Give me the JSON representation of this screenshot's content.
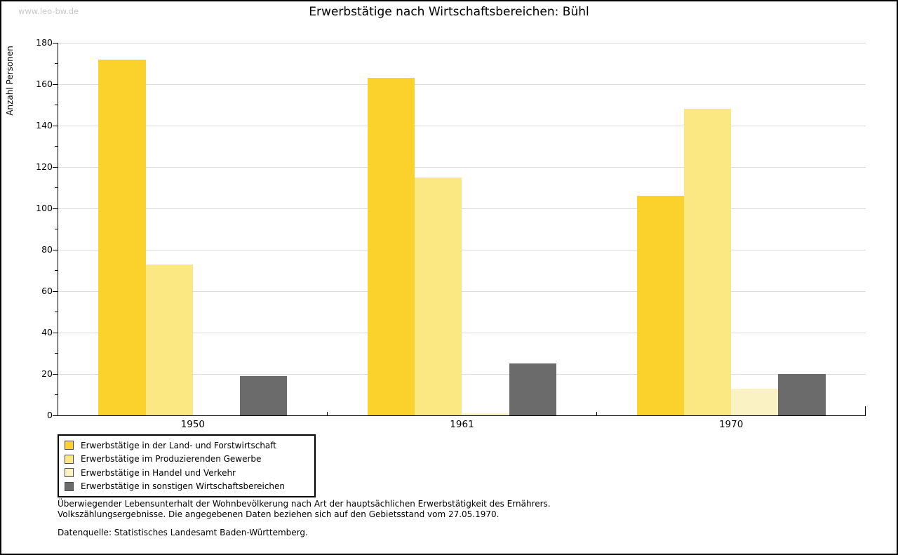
{
  "watermark": "www.leo-bw.de",
  "title": "Erwerbstätige nach Wirtschaftsbereichen: Bühl",
  "axes": {
    "y_label": "Anzahl Personen",
    "x_categories": [
      "1950",
      "1961",
      "1970"
    ]
  },
  "chart_data": {
    "type": "bar",
    "title": "Erwerbstätige nach Wirtschaftsbereichen: Bühl",
    "categories": [
      "1950",
      "1961",
      "1970"
    ],
    "series": [
      {
        "name": "Erwerbstätige in der Land- und Forstwirtschaft",
        "color": "#fbd22b",
        "values": [
          172,
          163,
          106
        ]
      },
      {
        "name": "Erwerbstätige im Produzierenden Gewerbe",
        "color": "#fbe883",
        "values": [
          73,
          115,
          148
        ]
      },
      {
        "name": "Erwerbstätige in Handel und Verkehr",
        "color": "#faf2c3",
        "values": [
          0,
          1,
          13
        ]
      },
      {
        "name": "Erwerbstätige in sonstigen Wirtschaftsbereichen",
        "color": "#6b6b6b",
        "values": [
          19,
          25,
          20
        ]
      }
    ],
    "xlabel": "",
    "ylabel": "Anzahl Personen",
    "ylim": [
      0,
      180
    ],
    "y_major_step": 20,
    "y_minor_step": 10,
    "grid": true,
    "gridline_color": "#dcdcdc",
    "legend_position": "bottom-left"
  },
  "footnotes": {
    "line1": "Überwiegender Lebensunterhalt der Wohnbevölkerung nach Art der hauptsächlichen Erwerbstätigkeit des Ernährers.",
    "line2": "Volkszählungsergebnisse. Die angegebenen Daten beziehen sich auf den Gebietsstand vom 27.05.1970.",
    "source": "Datenquelle: Statistisches Landesamt Baden-Württemberg."
  }
}
